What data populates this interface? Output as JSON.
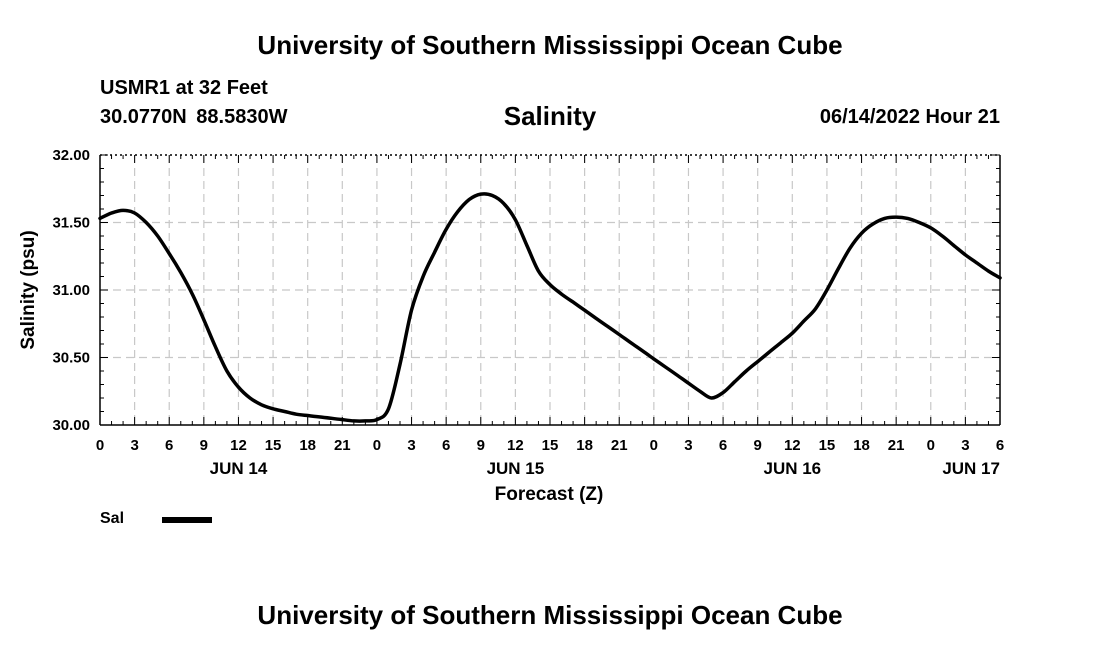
{
  "header": {
    "org_title": "University of Southern Mississippi Ocean Cube",
    "station": "USMR1 at 32 Feet",
    "coords": "30.0770N  88.5830W",
    "timestamp": "06/14/2022 Hour 21"
  },
  "footer": {
    "org_title": "University of Southern Mississippi Ocean Cube"
  },
  "legend": {
    "label": "Sal"
  },
  "chart_data": {
    "type": "line",
    "title": "Salinity",
    "xlabel": "Forecast (Z)",
    "ylabel": "Salinity (psu)",
    "xlim": [
      0,
      78
    ],
    "ylim": [
      30.0,
      32.0
    ],
    "grid": true,
    "legend_position": "bottom-left",
    "y_ticks": [
      "30.00",
      "30.50",
      "31.00",
      "31.50",
      "32.00"
    ],
    "x_ticks": [
      {
        "h": 0,
        "label": "0"
      },
      {
        "h": 3,
        "label": "3"
      },
      {
        "h": 6,
        "label": "6"
      },
      {
        "h": 9,
        "label": "9"
      },
      {
        "h": 12,
        "label": "12"
      },
      {
        "h": 15,
        "label": "15"
      },
      {
        "h": 18,
        "label": "18"
      },
      {
        "h": 21,
        "label": "21"
      },
      {
        "h": 24,
        "label": "0"
      },
      {
        "h": 27,
        "label": "3"
      },
      {
        "h": 30,
        "label": "6"
      },
      {
        "h": 33,
        "label": "9"
      },
      {
        "h": 36,
        "label": "12"
      },
      {
        "h": 39,
        "label": "15"
      },
      {
        "h": 42,
        "label": "18"
      },
      {
        "h": 45,
        "label": "21"
      },
      {
        "h": 48,
        "label": "0"
      },
      {
        "h": 51,
        "label": "3"
      },
      {
        "h": 54,
        "label": "6"
      },
      {
        "h": 57,
        "label": "9"
      },
      {
        "h": 60,
        "label": "12"
      },
      {
        "h": 63,
        "label": "15"
      },
      {
        "h": 66,
        "label": "18"
      },
      {
        "h": 69,
        "label": "21"
      },
      {
        "h": 72,
        "label": "0"
      },
      {
        "h": 75,
        "label": "3"
      },
      {
        "h": 78,
        "label": "6"
      }
    ],
    "day_labels": [
      {
        "h": 12,
        "label": "JUN 14"
      },
      {
        "h": 36,
        "label": "JUN 15"
      },
      {
        "h": 60,
        "label": "JUN 16"
      },
      {
        "h": 75.5,
        "label": "JUN 17"
      }
    ],
    "series": [
      {
        "name": "Sal",
        "x": [
          0,
          1,
          2,
          3,
          4,
          5,
          6,
          7,
          8,
          9,
          10,
          11,
          12,
          13,
          14,
          15,
          16,
          17,
          18,
          19,
          20,
          21,
          22,
          23,
          24,
          25,
          26,
          27,
          28,
          29,
          30,
          31,
          32,
          33,
          34,
          35,
          36,
          37,
          38,
          39,
          40,
          41,
          42,
          43,
          44,
          45,
          46,
          47,
          48,
          49,
          50,
          51,
          52,
          53,
          54,
          55,
          56,
          57,
          58,
          59,
          60,
          61,
          62,
          63,
          64,
          65,
          66,
          67,
          68,
          69,
          70,
          71,
          72,
          73,
          74,
          75,
          76,
          77,
          78
        ],
        "values": [
          31.53,
          31.57,
          31.59,
          31.57,
          31.5,
          31.4,
          31.27,
          31.13,
          30.97,
          30.78,
          30.58,
          30.4,
          30.28,
          30.2,
          30.15,
          30.12,
          30.1,
          30.08,
          30.07,
          30.06,
          30.05,
          30.04,
          30.03,
          30.03,
          30.04,
          30.12,
          30.45,
          30.85,
          31.1,
          31.28,
          31.45,
          31.58,
          31.67,
          31.71,
          31.7,
          31.64,
          31.52,
          31.33,
          31.14,
          31.04,
          30.97,
          30.91,
          30.85,
          30.79,
          30.73,
          30.67,
          30.61,
          30.55,
          30.49,
          30.43,
          30.37,
          30.31,
          30.25,
          30.2,
          30.24,
          30.32,
          30.4,
          30.47,
          30.54,
          30.61,
          30.68,
          30.77,
          30.86,
          31.0,
          31.16,
          31.31,
          31.42,
          31.49,
          31.53,
          31.54,
          31.53,
          31.5,
          31.46,
          31.4,
          31.33,
          31.26,
          31.2,
          31.14,
          31.09
        ]
      }
    ]
  }
}
